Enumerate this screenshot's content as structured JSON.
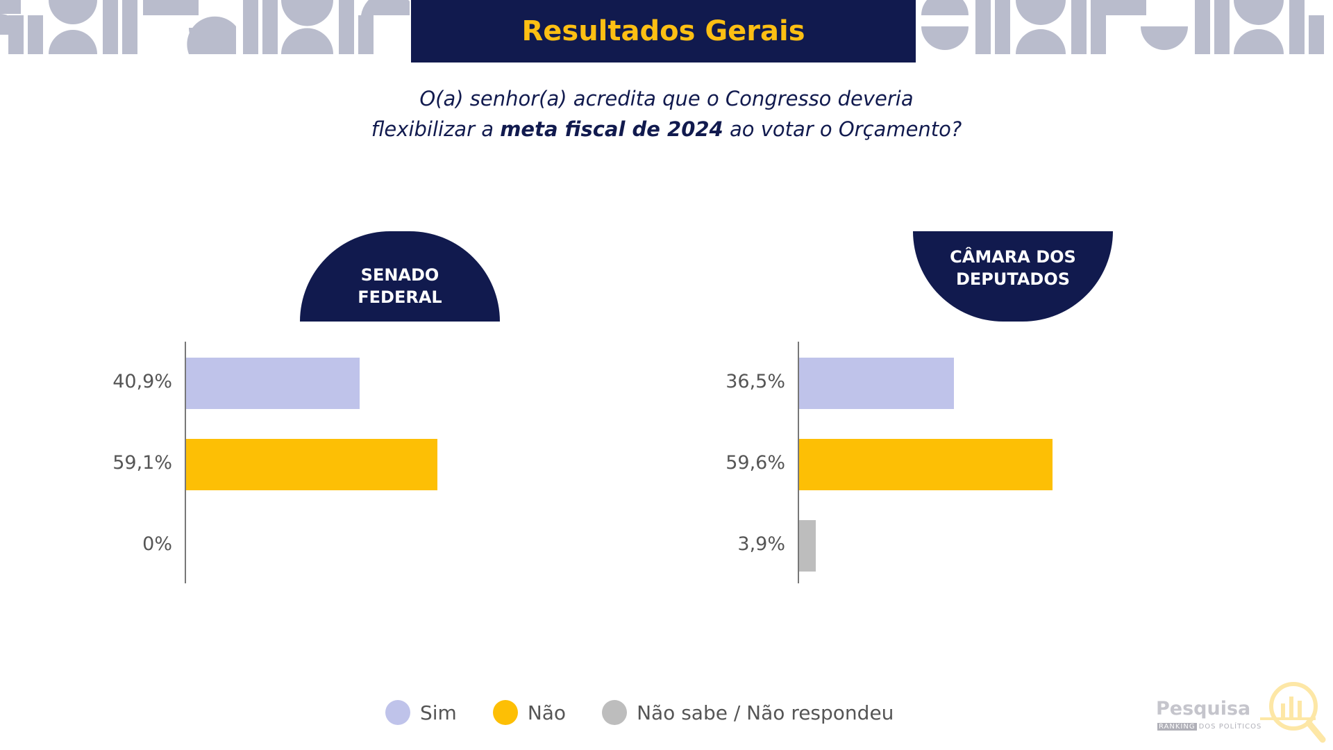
{
  "header": {
    "title": "Resultados Gerais"
  },
  "question": {
    "part1": "O(a) senhor(a) acredita que o Congresso deveria",
    "part2": "flexibilizar a ",
    "bold": "meta fiscal de 2024",
    "part3": " ao votar o Orçamento?"
  },
  "colors": {
    "navy": "#111a4e",
    "sim": "#bfc3ea",
    "nao": "#fdbf05",
    "nao_sabe": "#bdbdbd",
    "title_text": "#fdbf13"
  },
  "chart_data": [
    {
      "type": "bar",
      "orientation": "horizontal",
      "title_line1": "SENADO",
      "title_line2": "FEDERAL",
      "categories": [
        "Sim",
        "Não",
        "Não sabe / Não respondeu"
      ],
      "values": [
        40.9,
        59.1,
        0
      ],
      "labels": [
        "40,9%",
        "59,1%",
        "0%"
      ],
      "xlim": [
        0,
        100
      ]
    },
    {
      "type": "bar",
      "orientation": "horizontal",
      "title_line1": "CÂMARA DOS",
      "title_line2": "DEPUTADOS",
      "categories": [
        "Sim",
        "Não",
        "Não sabe / Não respondeu"
      ],
      "values": [
        36.5,
        59.6,
        3.9
      ],
      "labels": [
        "36,5%",
        "59,6%",
        "3,9%"
      ],
      "xlim": [
        0,
        100
      ]
    }
  ],
  "legend": [
    {
      "label": "Sim"
    },
    {
      "label": "Não"
    },
    {
      "label": "Não sabe / Não respondeu"
    }
  ],
  "logo": {
    "text": "Pesquisa",
    "tag": "RANKING",
    "sub": "DOS POLÍTICOS"
  }
}
